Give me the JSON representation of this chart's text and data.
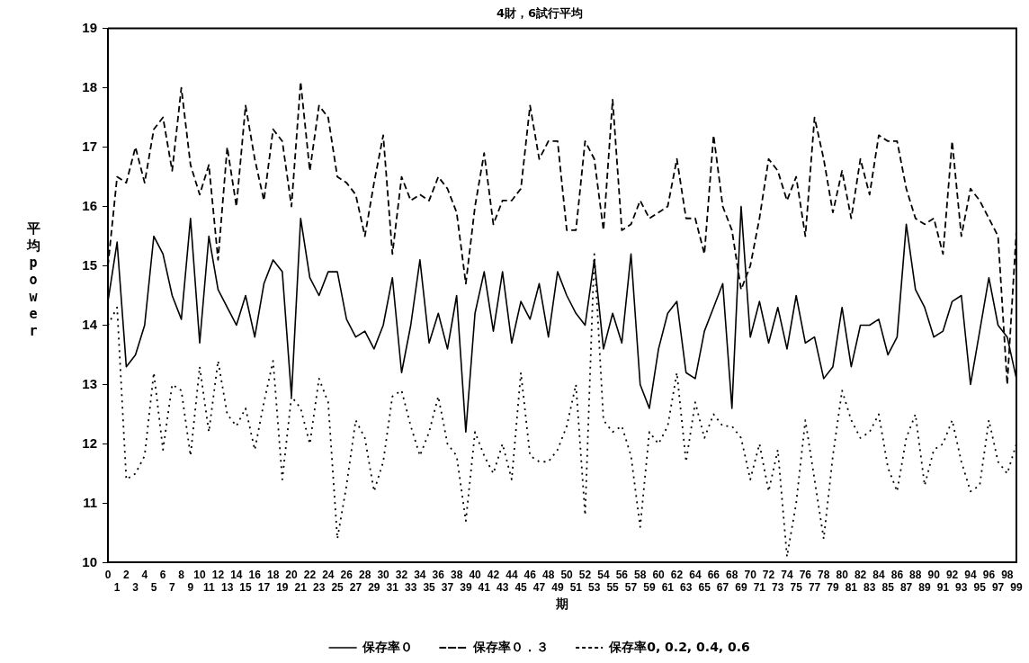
{
  "chart_data": {
    "type": "line",
    "title": "4財，6試行平均",
    "xlabel": "期",
    "ylabel": "平均power",
    "categories": [
      "0",
      "1",
      "2",
      "3",
      "4",
      "5",
      "6",
      "7",
      "8",
      "9",
      "10",
      "11",
      "12",
      "13",
      "14",
      "15",
      "16",
      "17",
      "18",
      "19",
      "20",
      "21",
      "22",
      "23",
      "24",
      "25",
      "26",
      "27",
      "28",
      "29",
      "30",
      "31",
      "32",
      "33",
      "34",
      "35",
      "36",
      "37",
      "38",
      "39",
      "40",
      "41",
      "42",
      "43",
      "44",
      "45",
      "46",
      "47",
      "48",
      "49",
      "50",
      "51",
      "52",
      "53",
      "54",
      "55",
      "56",
      "57",
      "58",
      "59",
      "60",
      "61",
      "62",
      "63",
      "64",
      "65",
      "66",
      "67",
      "68",
      "69",
      "70",
      "71",
      "72",
      "73",
      "74",
      "75",
      "76",
      "77",
      "78",
      "79",
      "80",
      "81",
      "82",
      "83",
      "84",
      "85",
      "86",
      "87",
      "88",
      "89",
      "90",
      "91",
      "92",
      "93",
      "94",
      "95",
      "96",
      "97",
      "98",
      "99"
    ],
    "series": [
      {
        "name": "保存率０",
        "color": "#000000",
        "line_style": "solid",
        "values": [
          14.4,
          15.4,
          13.3,
          13.5,
          14.0,
          15.5,
          15.2,
          14.5,
          14.1,
          15.8,
          13.7,
          15.5,
          14.6,
          14.3,
          14.0,
          14.5,
          13.8,
          14.7,
          15.1,
          14.9,
          12.8,
          15.8,
          14.8,
          14.5,
          14.9,
          14.9,
          14.1,
          13.8,
          13.9,
          13.6,
          14.0,
          14.8,
          13.2,
          14.0,
          15.1,
          13.7,
          14.2,
          13.6,
          14.5,
          12.2,
          14.2,
          14.9,
          13.9,
          14.9,
          13.7,
          14.4,
          14.1,
          14.7,
          13.8,
          14.9,
          14.5,
          14.2,
          14.0,
          15.1,
          13.6,
          14.2,
          13.7,
          15.2,
          13.0,
          12.6,
          13.6,
          14.2,
          14.4,
          13.2,
          13.1,
          13.9,
          14.3,
          14.7,
          12.6,
          16.0,
          13.8,
          14.4,
          13.7,
          14.3,
          13.6,
          14.5,
          13.7,
          13.8,
          13.1,
          13.3,
          14.3,
          13.3,
          14.0,
          14.0,
          14.1,
          13.5,
          13.8,
          15.7,
          14.6,
          14.3,
          13.8,
          13.9,
          14.4,
          14.5,
          13.0,
          13.9,
          14.8,
          14.0,
          13.8,
          13.1
        ]
      },
      {
        "name": "保存率０．３",
        "color": "#000000",
        "line_style": "dashed",
        "values": [
          15.0,
          16.5,
          16.4,
          17.0,
          16.4,
          17.3,
          17.5,
          16.6,
          18.0,
          16.7,
          16.2,
          16.7,
          15.1,
          17.0,
          16.0,
          17.7,
          16.8,
          16.1,
          17.3,
          17.1,
          16.0,
          18.1,
          16.6,
          17.7,
          17.5,
          16.5,
          16.4,
          16.2,
          15.5,
          16.4,
          17.2,
          15.2,
          16.5,
          16.1,
          16.2,
          16.1,
          16.5,
          16.3,
          15.9,
          14.7,
          16.0,
          16.9,
          15.7,
          16.1,
          16.1,
          16.3,
          17.7,
          16.8,
          17.1,
          17.1,
          15.6,
          15.6,
          17.1,
          16.8,
          15.6,
          17.8,
          15.6,
          15.7,
          16.1,
          15.8,
          15.9,
          16.0,
          16.8,
          15.8,
          15.8,
          15.2,
          17.2,
          16.0,
          15.6,
          14.6,
          15.0,
          15.8,
          16.8,
          16.6,
          16.1,
          16.5,
          15.5,
          17.5,
          16.8,
          15.9,
          16.6,
          15.8,
          16.8,
          16.2,
          17.2,
          17.1,
          17.1,
          16.3,
          15.8,
          15.7,
          15.8,
          15.2,
          17.1,
          15.5,
          16.3,
          16.1,
          15.8,
          15.5,
          13.0,
          15.6
        ]
      },
      {
        "name": "保存率0, 0.2, 0.4, 0.6",
        "color": "#000000",
        "line_style": "dotted",
        "values": [
          14.0,
          14.3,
          11.4,
          11.5,
          11.8,
          13.2,
          11.9,
          13.0,
          12.9,
          11.8,
          13.3,
          12.2,
          13.4,
          12.5,
          12.3,
          12.6,
          11.9,
          12.7,
          13.4,
          11.4,
          12.8,
          12.6,
          12.0,
          13.1,
          12.7,
          10.4,
          11.3,
          12.4,
          12.1,
          11.2,
          11.7,
          12.8,
          12.9,
          12.3,
          11.8,
          12.2,
          12.8,
          12.0,
          11.8,
          10.7,
          12.2,
          11.8,
          11.5,
          12.0,
          11.4,
          13.2,
          11.8,
          11.7,
          11.7,
          11.9,
          12.3,
          13.0,
          10.8,
          15.2,
          12.4,
          12.2,
          12.3,
          11.8,
          10.6,
          12.2,
          12.0,
          12.3,
          13.2,
          11.7,
          12.7,
          12.1,
          12.5,
          12.3,
          12.3,
          12.1,
          11.4,
          12.0,
          11.2,
          11.9,
          10.1,
          11.0,
          12.4,
          11.4,
          10.4,
          11.8,
          12.9,
          12.4,
          12.1,
          12.2,
          12.5,
          11.6,
          11.2,
          12.1,
          12.5,
          11.3,
          11.9,
          12.0,
          12.4,
          11.7,
          11.2,
          11.3,
          12.4,
          11.7,
          11.5,
          12.0
        ]
      }
    ],
    "ylim": [
      10,
      19
    ],
    "yticks": [
      10,
      11,
      12,
      13,
      14,
      15,
      16,
      17,
      18,
      19
    ],
    "grid": false,
    "legend": "bottom",
    "marker": "none"
  }
}
